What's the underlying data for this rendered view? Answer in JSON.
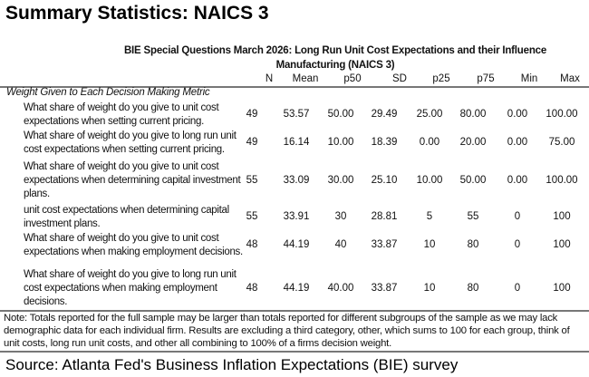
{
  "title": "Summary Statistics: NAICS 3",
  "table": {
    "title_line1": "BIE Special Questions March 2026: Long Run Unit Cost Expectations and their Influence",
    "title_line2": "Manufacturing (NAICS 3)",
    "columns": [
      "N",
      "Mean",
      "p50",
      "SD",
      "p25",
      "p75",
      "Min",
      "Max"
    ],
    "group_label": "Weight Given to Each Decision Making Metric",
    "rows": [
      {
        "label": "What share of weight do you give to unit cost expectations when setting current pricing.",
        "values": [
          "49",
          "53.57",
          "50.00",
          "29.49",
          "25.00",
          "80.00",
          "0.00",
          "100.00"
        ]
      },
      {
        "label": "What share of weight do you give to long run unit cost expectations when setting current pricing.",
        "values": [
          "49",
          "16.14",
          "10.00",
          "18.39",
          "0.00",
          "20.00",
          "0.00",
          "75.00"
        ]
      },
      {
        "label": "What share of weight do you give to unit cost expectations when determining capital investment plans.",
        "values": [
          "55",
          "33.09",
          "30.00",
          "25.10",
          "10.00",
          "50.00",
          "0.00",
          "100.00"
        ]
      },
      {
        "label": "unit cost expectations when determining capital investment plans.",
        "values": [
          "55",
          "33.91",
          "30",
          "28.81",
          "5",
          "55",
          "0",
          "100"
        ]
      },
      {
        "label": "What share of weight do you give to unit cost expectations when making employment decisions.",
        "values": [
          "48",
          "44.19",
          "40",
          "33.87",
          "10",
          "80",
          "0",
          "100"
        ]
      },
      {
        "label": "What share of weight do you give to long run unit cost expectations when making employment decisions.",
        "values": [
          "48",
          "44.19",
          "40.00",
          "33.87",
          "10",
          "80",
          "0",
          "100"
        ]
      }
    ],
    "note": "Note: Totals reported for the full sample may be larger than totals reported for different subgroups of the sample as we may lack demographic data for each individual firm. Results are excluding a third category, other, which sums to 100 for each group, think of unit costs, long run unit costs, and other all combining to 100% of a firms decision weight."
  },
  "source": "Source: Atlanta Fed's Business Inflation Expectations (BIE) survey"
}
